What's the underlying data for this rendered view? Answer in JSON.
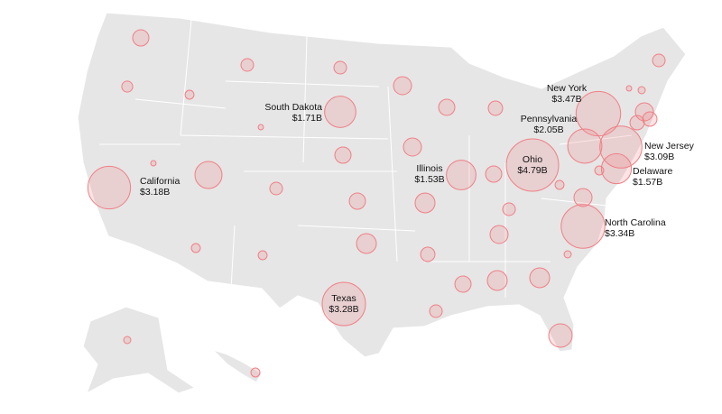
{
  "chart_data": {
    "type": "bubble_map",
    "categories": [
      "California",
      "Texas",
      "Ohio",
      "New York",
      "Pennsylvania",
      "New Jersey",
      "Delaware",
      "North Carolina",
      "South Dakota",
      "Illinois",
      null,
      null,
      null,
      null,
      null,
      null,
      null,
      null,
      null,
      null,
      null,
      null,
      null,
      null,
      null,
      null,
      null,
      null,
      null,
      null,
      null,
      null,
      null,
      null,
      null,
      null,
      null,
      null,
      null,
      null,
      null,
      null,
      null,
      null,
      null,
      null,
      null,
      null,
      null,
      null
    ],
    "values": [
      3.18,
      3.28,
      4.79,
      3.47,
      2.05,
      3.09,
      1.57,
      3.34,
      1.71,
      1.53,
      0.46,
      0.28,
      0.28,
      0.21,
      0.14,
      0.05,
      0.57,
      0.46,
      0.36,
      0.28,
      0.05,
      0.09,
      0.57,
      0.36,
      0.36,
      0.57,
      0.46,
      0.05,
      1.28,
      0.28,
      0.46,
      0.14,
      0.14,
      0.57,
      0.46,
      0.69,
      0.28,
      0.57,
      0.69,
      0.14,
      0.14,
      0.36,
      0.09,
      0.69,
      0.69,
      0.46,
      0.28,
      0.96,
      0.09,
      0.14
    ],
    "value_labels": [
      "$3.18B",
      "$3.28B",
      "$4.79B",
      "$3.47B",
      "$2.05B",
      "$3.09B",
      "$1.57B",
      "$3.34B",
      "$1.71B",
      "$1.53B",
      null,
      null,
      null,
      null,
      null,
      null,
      null,
      null,
      null,
      null,
      null,
      null,
      null,
      null,
      null,
      null,
      null,
      null,
      null,
      null,
      null,
      null,
      null,
      null,
      null,
      null,
      null,
      null,
      null,
      null,
      null,
      null,
      null,
      null,
      null,
      null,
      null,
      null,
      null,
      null
    ],
    "color": "#f07f85"
  }
}
